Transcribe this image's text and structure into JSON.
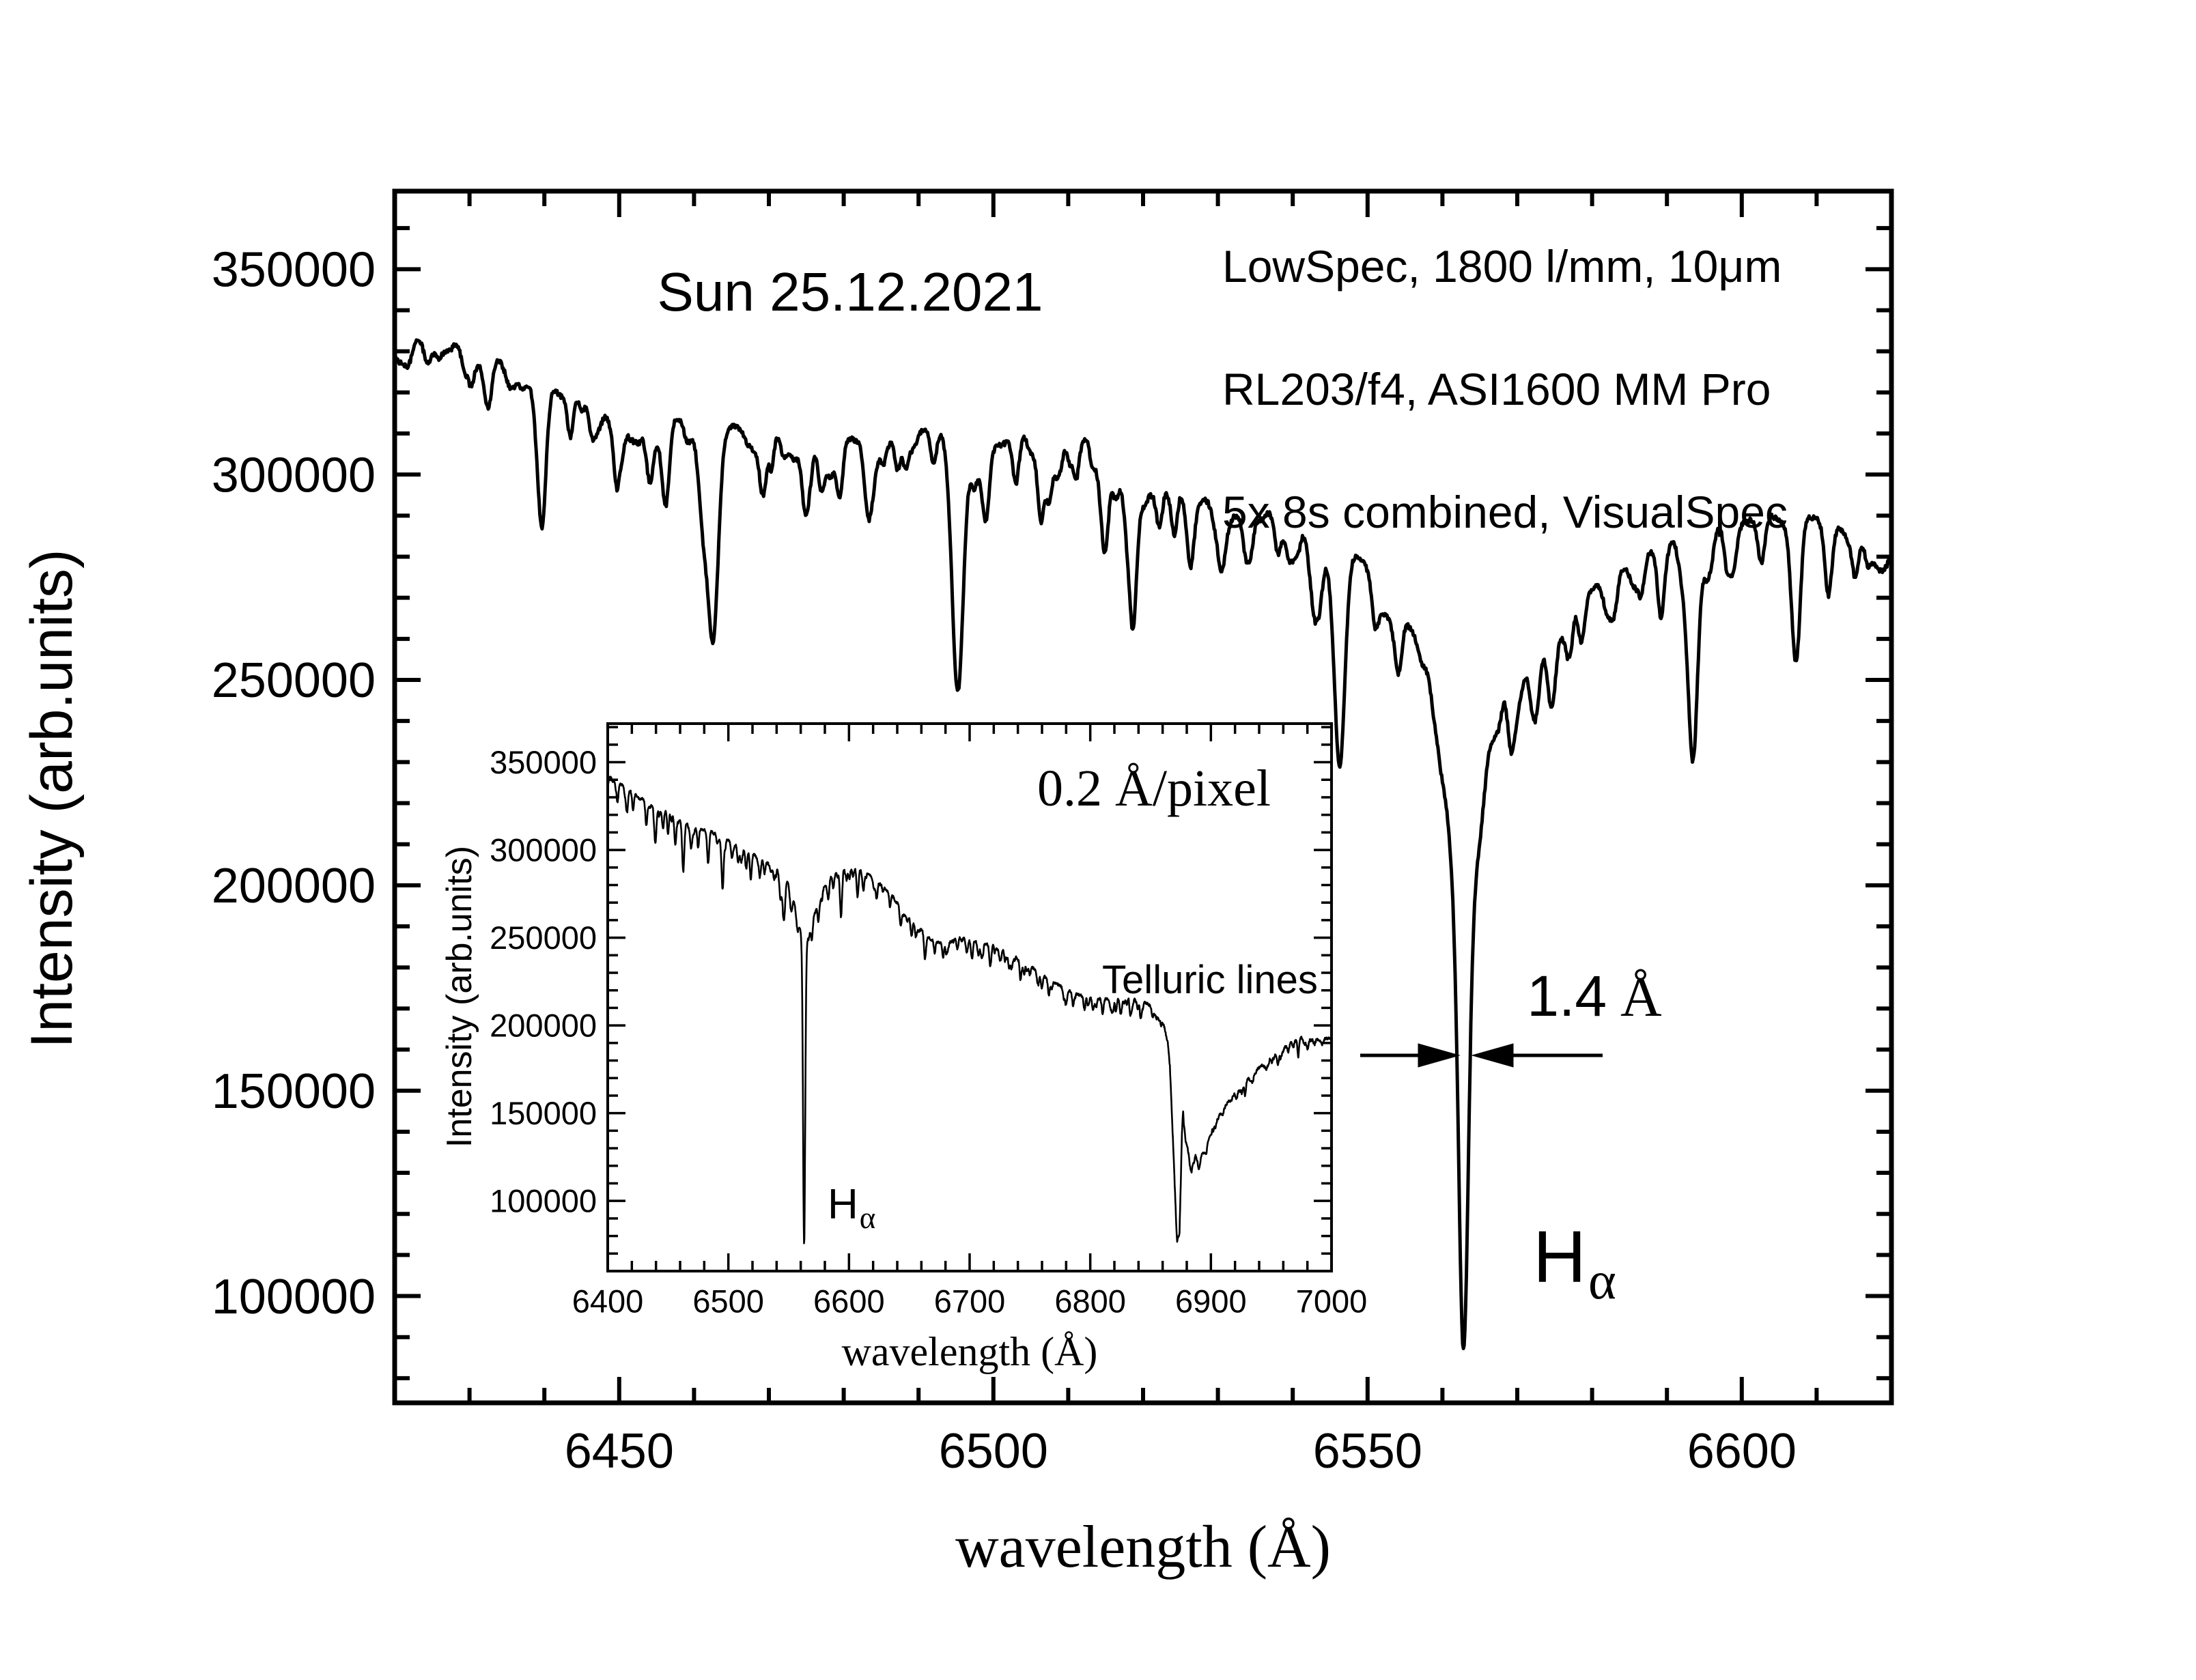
{
  "figure": {
    "title": "Sun 25.12.2021",
    "info_lines": [
      "LowSpec, 1800 l/mm, 10μm",
      "RL203/f4, ASI1600 MM Pro",
      "5x 8s combined, VisualSpec"
    ],
    "background": "#ffffff",
    "foreground": "#000000"
  },
  "chart_data": [
    {
      "id": "main",
      "type": "line",
      "title": "Sun 25.12.2021",
      "xlabel": "wavelength (Å)",
      "ylabel": "Intensity (arb.units)",
      "xlim": [
        6420,
        6620
      ],
      "ylim": [
        74000,
        369000
      ],
      "x_ticks": [
        6450,
        6500,
        6550,
        6600
      ],
      "y_ticks": [
        350000,
        300000,
        250000,
        200000,
        150000,
        100000
      ],
      "x_minor_step": 10,
      "y_minor_step": 10000,
      "grid": false,
      "annotations": {
        "width_value": "1.4",
        "width_unit": "Å",
        "line_base": "H",
        "line_sub": "α"
      },
      "continuum": [
        [
          6420,
          331000
        ],
        [
          6423,
          334500
        ],
        [
          6426,
          331000
        ],
        [
          6429,
          334000
        ],
        [
          6432,
          330500
        ],
        [
          6436,
          326000
        ],
        [
          6440,
          322000
        ],
        [
          6444,
          319500
        ],
        [
          6448,
          317000
        ],
        [
          6452,
          315500
        ],
        [
          6456,
          314500
        ],
        [
          6460,
          313000
        ],
        [
          6464,
          312000
        ],
        [
          6468,
          311000
        ],
        [
          6472,
          310500
        ],
        [
          6476,
          311000
        ],
        [
          6480,
          309000
        ],
        [
          6484,
          307500
        ],
        [
          6488,
          310000
        ],
        [
          6492,
          311500
        ],
        [
          6496,
          307500
        ],
        [
          6500,
          306500
        ],
        [
          6504,
          309500
        ],
        [
          6508,
          308000
        ],
        [
          6512,
          309500
        ],
        [
          6516,
          304000
        ],
        [
          6520,
          299000
        ],
        [
          6524,
          296500
        ],
        [
          6528,
          294000
        ],
        [
          6532,
          292500
        ],
        [
          6536,
          291000
        ],
        [
          6540,
          289500
        ],
        [
          6544,
          287500
        ],
        [
          6548,
          284000
        ],
        [
          6552,
          280500
        ],
        [
          6556,
          278000
        ],
        [
          6560,
          275000
        ],
        [
          6564,
          271000
        ],
        [
          6568,
          268000
        ],
        [
          6572,
          268000
        ],
        [
          6576,
          270000
        ],
        [
          6580,
          273500
        ],
        [
          6584,
          277500
        ],
        [
          6588,
          281500
        ],
        [
          6592,
          284500
        ],
        [
          6596,
          287000
        ],
        [
          6600,
          288500
        ],
        [
          6604,
          290000
        ],
        [
          6608,
          290500
        ],
        [
          6612,
          288000
        ],
        [
          6616,
          284500
        ],
        [
          6620,
          282500
        ]
      ],
      "absorption_lines": [
        [
          6432.5,
          12000,
          0.5
        ],
        [
          6439.5,
          26000,
          0.6
        ],
        [
          6443.5,
          9000,
          0.4
        ],
        [
          6450.2,
          11000,
          0.5
        ],
        [
          6456.2,
          22000,
          0.5
        ],
        [
          6462.6,
          46000,
          0.7
        ],
        [
          6469.2,
          16000,
          0.5
        ],
        [
          6475.0,
          9000,
          0.4
        ],
        [
          6479.5,
          11000,
          0.4
        ],
        [
          6483.3,
          18000,
          0.5
        ],
        [
          6487.2,
          8000,
          0.4
        ],
        [
          6492.0,
          9000,
          0.4
        ],
        [
          6495.2,
          58000,
          0.7
        ],
        [
          6499.0,
          13000,
          0.45
        ],
        [
          6503.0,
          11000,
          0.4
        ],
        [
          6507.5,
          9000,
          0.4
        ],
        [
          6511.0,
          8000,
          0.4
        ],
        [
          6514.8,
          16000,
          0.5
        ],
        [
          6518.6,
          26000,
          0.6
        ],
        [
          6522.2,
          9000,
          0.4
        ],
        [
          6526.3,
          8000,
          0.4
        ],
        [
          6530.5,
          9000,
          0.4
        ],
        [
          6533.8,
          11000,
          0.45
        ],
        [
          6538.0,
          9000,
          0.4
        ],
        [
          6543.0,
          20000,
          0.55
        ],
        [
          6546.3,
          42000,
          0.7
        ],
        [
          6551.0,
          11000,
          0.45
        ],
        [
          6554.2,
          9000,
          0.4
        ],
        [
          6562.8,
          26000,
          7.0
        ],
        [
          6562.8,
          60000,
          1.8
        ],
        [
          6562.8,
          95000,
          0.6
        ],
        [
          6569.2,
          11000,
          0.45
        ],
        [
          6574.6,
          20000,
          0.55
        ],
        [
          6578.6,
          11000,
          0.45
        ],
        [
          6583.0,
          9000,
          0.4
        ],
        [
          6586.6,
          8000,
          0.4
        ],
        [
          6589.2,
          9000,
          0.4
        ],
        [
          6593.4,
          44000,
          0.7
        ],
        [
          6598.0,
          9000,
          0.4
        ],
        [
          6602.6,
          11000,
          0.45
        ],
        [
          6607.2,
          27000,
          0.6
        ],
        [
          6611.6,
          13000,
          0.5
        ],
        [
          6615.2,
          9000,
          0.4
        ]
      ],
      "noise": {
        "jitter": 600,
        "microlines": {
          "count": 160,
          "depth_min": 1500,
          "depth_max": 7000,
          "sigma_min": 0.3,
          "sigma_max": 0.7
        }
      }
    },
    {
      "id": "inset",
      "type": "line",
      "title": "0.2 Å/pixel",
      "xlabel": "wavelength (Å)",
      "ylabel": "Intensity (arb.units)",
      "xlim": [
        6400,
        7000
      ],
      "ylim": [
        60000,
        372000
      ],
      "x_ticks": [
        6400,
        6500,
        6600,
        6700,
        6800,
        6900,
        7000
      ],
      "y_ticks": [
        350000,
        300000,
        250000,
        200000,
        150000,
        100000
      ],
      "x_minor_step": 20,
      "y_minor_step": 10000,
      "grid": false,
      "annotations": {
        "dispersion": "0.2 Å/pixel",
        "telluric": "Telluric lines",
        "line_base": "H",
        "line_sub": "α"
      },
      "continuum": [
        [
          6400,
          345000
        ],
        [
          6405,
          341000
        ],
        [
          6410,
          338000
        ],
        [
          6415,
          335500
        ],
        [
          6420,
          333000
        ],
        [
          6425,
          330500
        ],
        [
          6430,
          328500
        ],
        [
          6435,
          327000
        ],
        [
          6440,
          325500
        ],
        [
          6445,
          323500
        ],
        [
          6450,
          321500
        ],
        [
          6455,
          319500
        ],
        [
          6460,
          317500
        ],
        [
          6465,
          315000
        ],
        [
          6470,
          313000
        ],
        [
          6475,
          312000
        ],
        [
          6480,
          311500
        ],
        [
          6485,
          310500
        ],
        [
          6490,
          309500
        ],
        [
          6495,
          307500
        ],
        [
          6500,
          305500
        ],
        [
          6505,
          303500
        ],
        [
          6510,
          302000
        ],
        [
          6515,
          300000
        ],
        [
          6520,
          298000
        ],
        [
          6525,
          295500
        ],
        [
          6530,
          293500
        ],
        [
          6535,
          291500
        ],
        [
          6540,
          289000
        ],
        [
          6545,
          286000
        ],
        [
          6550,
          282500
        ],
        [
          6555,
          278500
        ],
        [
          6560,
          273500
        ],
        [
          6565,
          271500
        ],
        [
          6570,
          272500
        ],
        [
          6575,
          276000
        ],
        [
          6580,
          280500
        ],
        [
          6585,
          284500
        ],
        [
          6590,
          287500
        ],
        [
          6595,
          289500
        ],
        [
          6600,
          290500
        ],
        [
          6605,
          290000
        ],
        [
          6610,
          288500
        ],
        [
          6615,
          286500
        ],
        [
          6620,
          284000
        ],
        [
          6625,
          281000
        ],
        [
          6630,
          278000
        ],
        [
          6635,
          274500
        ],
        [
          6640,
          271000
        ],
        [
          6645,
          267000
        ],
        [
          6650,
          262500
        ],
        [
          6655,
          258500
        ],
        [
          6660,
          254500
        ],
        [
          6665,
          251000
        ],
        [
          6670,
          248500
        ],
        [
          6675,
          247000
        ],
        [
          6680,
          247000
        ],
        [
          6685,
          248500
        ],
        [
          6690,
          250000
        ],
        [
          6695,
          250000
        ],
        [
          6700,
          249000
        ],
        [
          6705,
          248000
        ],
        [
          6710,
          247000
        ],
        [
          6715,
          246500
        ],
        [
          6720,
          246000
        ],
        [
          6725,
          244500
        ],
        [
          6730,
          243000
        ],
        [
          6735,
          241000
        ],
        [
          6740,
          239000
        ],
        [
          6745,
          236500
        ],
        [
          6750,
          234000
        ],
        [
          6755,
          231500
        ],
        [
          6760,
          229000
        ],
        [
          6765,
          226500
        ],
        [
          6770,
          224500
        ],
        [
          6775,
          222500
        ],
        [
          6780,
          220500
        ],
        [
          6785,
          219000
        ],
        [
          6790,
          217500
        ],
        [
          6795,
          216500
        ],
        [
          6800,
          216000
        ],
        [
          6805,
          215500
        ],
        [
          6810,
          215000
        ],
        [
          6815,
          215000
        ],
        [
          6820,
          215500
        ],
        [
          6825,
          216000
        ],
        [
          6830,
          216000
        ],
        [
          6835,
          215500
        ],
        [
          6840,
          215000
        ],
        [
          6845,
          213500
        ],
        [
          6850,
          211000
        ],
        [
          6855,
          204000
        ],
        [
          6858,
          207000
        ],
        [
          6861,
          200000
        ],
        [
          6864,
          193000
        ],
        [
          6866,
          178000
        ],
        [
          6868,
          145000
        ],
        [
          6870,
          110000
        ],
        [
          6872,
          80000
        ],
        [
          6874,
          86000
        ],
        [
          6876,
          140000
        ],
        [
          6877,
          157000
        ],
        [
          6879,
          138000
        ],
        [
          6881,
          129000
        ],
        [
          6884,
          118000
        ],
        [
          6887,
          126000
        ],
        [
          6890,
          122000
        ],
        [
          6893,
          130000
        ],
        [
          6896,
          135000
        ],
        [
          6900,
          140000
        ],
        [
          6905,
          146500
        ],
        [
          6910,
          152000
        ],
        [
          6915,
          157000
        ],
        [
          6920,
          161500
        ],
        [
          6925,
          165000
        ],
        [
          6930,
          169000
        ],
        [
          6935,
          172500
        ],
        [
          6940,
          176000
        ],
        [
          6945,
          179000
        ],
        [
          6950,
          182000
        ],
        [
          6955,
          184500
        ],
        [
          6960,
          187000
        ],
        [
          6965,
          189500
        ],
        [
          6970,
          191500
        ],
        [
          6975,
          193500
        ],
        [
          6980,
          192000
        ],
        [
          6985,
          193000
        ],
        [
          6990,
          191500
        ],
        [
          6995,
          192500
        ],
        [
          7000,
          193000
        ]
      ],
      "absorption_lines": [
        [
          6408,
          9000,
          0.8
        ],
        [
          6416,
          13000,
          0.8
        ],
        [
          6421,
          10000,
          0.7
        ],
        [
          6432,
          14000,
          0.8
        ],
        [
          6439.5,
          22000,
          0.9
        ],
        [
          6446,
          8000,
          0.7
        ],
        [
          6450,
          10000,
          0.7
        ],
        [
          6456,
          15000,
          0.8
        ],
        [
          6462.6,
          26000,
          0.9
        ],
        [
          6469,
          12000,
          0.8
        ],
        [
          6475,
          8000,
          0.7
        ],
        [
          6483,
          13000,
          0.8
        ],
        [
          6495.2,
          30000,
          0.9
        ],
        [
          6503,
          8000,
          0.7
        ],
        [
          6508,
          8000,
          0.7
        ],
        [
          6514.8,
          11000,
          0.8
        ],
        [
          6518.6,
          15000,
          0.8
        ],
        [
          6526,
          7000,
          0.7
        ],
        [
          6530,
          7000,
          0.7
        ],
        [
          6538,
          7000,
          0.7
        ],
        [
          6543,
          13000,
          0.8
        ],
        [
          6546.3,
          22000,
          0.9
        ],
        [
          6552,
          8000,
          0.7
        ],
        [
          6562.8,
          22000,
          6.0
        ],
        [
          6562.8,
          172000,
          0.9
        ],
        [
          6569,
          8000,
          0.7
        ],
        [
          6574.6,
          13000,
          0.8
        ],
        [
          6583,
          8000,
          0.7
        ],
        [
          6593.4,
          24000,
          0.9
        ],
        [
          6598,
          7000,
          0.7
        ],
        [
          6607.2,
          13000,
          0.8
        ],
        [
          6611.6,
          9000,
          0.7
        ],
        [
          6623,
          9000,
          0.7
        ],
        [
          6634,
          8000,
          0.7
        ],
        [
          6643,
          11000,
          0.8
        ],
        [
          6652,
          7000,
          0.7
        ],
        [
          6663,
          9000,
          0.7
        ],
        [
          6671,
          7000,
          0.7
        ],
        [
          6678,
          8000,
          0.7
        ],
        [
          6690,
          6000,
          0.7
        ],
        [
          6702,
          6000,
          0.7
        ],
        [
          6710,
          6000,
          0.7
        ],
        [
          6717,
          7000,
          0.7
        ],
        [
          6726,
          5000,
          0.7
        ],
        [
          6733,
          5000,
          0.7
        ],
        [
          6742,
          6000,
          0.7
        ],
        [
          6750,
          5000,
          0.7
        ],
        [
          6760,
          5000,
          0.7
        ],
        [
          6768,
          5000,
          0.7
        ],
        [
          6778,
          5000,
          0.7
        ],
        [
          6786,
          5000,
          0.7
        ],
        [
          6795,
          6000,
          0.7
        ],
        [
          6802,
          5000,
          0.7
        ],
        [
          6810,
          5000,
          0.7
        ],
        [
          6818,
          6000,
          0.7
        ],
        [
          6826,
          5000,
          0.7
        ],
        [
          6834,
          5000,
          0.7
        ],
        [
          6842,
          6000,
          0.7
        ]
      ],
      "noise": {
        "jitter": 700,
        "microlines": {
          "count": 260,
          "depth_min": 800,
          "depth_max": 4500,
          "sigma_min": 0.4,
          "sigma_max": 0.9
        }
      }
    }
  ]
}
